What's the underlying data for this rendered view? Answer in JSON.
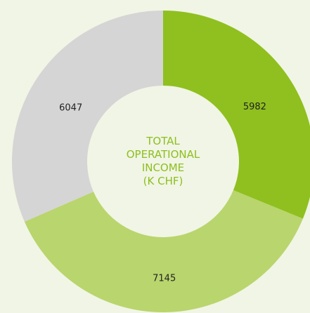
{
  "chart_data": {
    "type": "donut",
    "title": [
      "TOTAL",
      "OPERATIONAL",
      "INCOME",
      "(K CHF)"
    ],
    "values": [
      5982,
      7145,
      6047
    ],
    "colors": [
      "#8fc01f",
      "#b9d56d",
      "#d5d5d5"
    ]
  }
}
